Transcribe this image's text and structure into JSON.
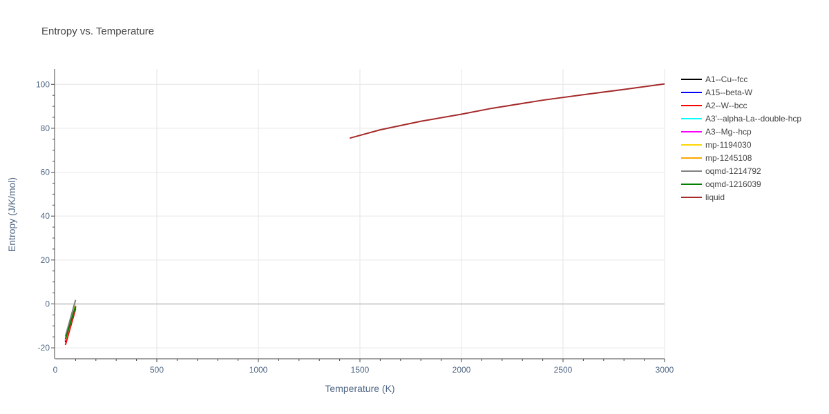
{
  "chart_data": {
    "type": "line",
    "title": "Entropy vs. Temperature",
    "xlabel": "Temperature (K)",
    "ylabel": "Entropy (J/K/mol)",
    "xlim": [
      0,
      3000
    ],
    "ylim": [
      -25,
      107
    ],
    "xticks": [
      0,
      500,
      1000,
      1500,
      2000,
      2500,
      3000
    ],
    "yticks": [
      -20,
      0,
      20,
      40,
      60,
      80,
      100
    ],
    "grid": true,
    "legend_position": "right",
    "series": [
      {
        "name": "A1--Cu--fcc",
        "color": "#000000",
        "x": [
          50,
          100
        ],
        "y": [
          -17.5,
          -1.5
        ]
      },
      {
        "name": "A15--beta-W",
        "color": "#0000ff",
        "x": [
          50,
          100
        ],
        "y": [
          -17.0,
          -1.0
        ]
      },
      {
        "name": "A2--W--bcc",
        "color": "#ff0000",
        "x": [
          50,
          100
        ],
        "y": [
          -18.7,
          -2.3
        ]
      },
      {
        "name": "A3'--alpha-La--double-hcp",
        "color": "#00ffff",
        "x": [
          50,
          100
        ],
        "y": [
          -16.5,
          -0.8
        ]
      },
      {
        "name": "A3--Mg--hcp",
        "color": "#ff00ff",
        "x": [
          50,
          100
        ],
        "y": [
          -16.8,
          -1.0
        ]
      },
      {
        "name": "mp-1194030",
        "color": "#ffd700",
        "x": [
          50,
          100
        ],
        "y": [
          -16.2,
          -0.6
        ]
      },
      {
        "name": "mp-1245108",
        "color": "#ffa500",
        "x": [
          50,
          100
        ],
        "y": [
          -16.6,
          -0.9
        ]
      },
      {
        "name": "oqmd-1214792",
        "color": "#808080",
        "x": [
          50,
          100
        ],
        "y": [
          -14.8,
          1.8
        ]
      },
      {
        "name": "oqmd-1216039",
        "color": "#008000",
        "x": [
          50,
          100
        ],
        "y": [
          -16.0,
          -1.2
        ]
      },
      {
        "name": "liquid",
        "color": "#a52a2a",
        "x": [
          1450,
          1600,
          1800,
          2000,
          2150,
          2400,
          2600,
          2800,
          3000
        ],
        "y": [
          75.5,
          79.3,
          83.2,
          86.4,
          89.1,
          92.8,
          95.3,
          97.7,
          100.2
        ]
      }
    ]
  }
}
